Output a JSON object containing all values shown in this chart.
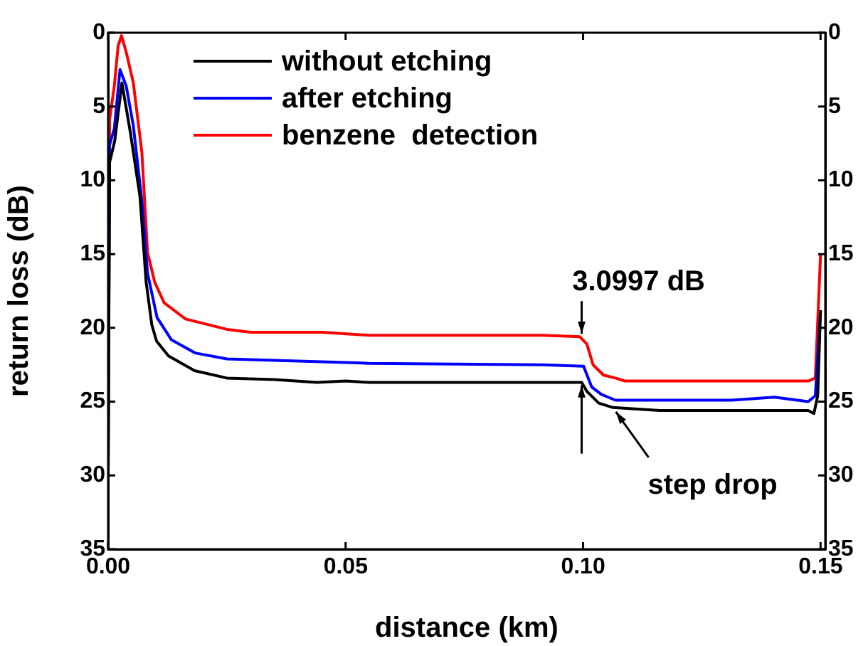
{
  "chart_data": {
    "type": "line",
    "xlabel": "distance (km)",
    "ylabel": "return loss (dB)",
    "xlim": [
      0,
      0.151
    ],
    "xticks": [
      {
        "value": 0,
        "label": "0.00"
      },
      {
        "value": 0.05,
        "label": "0.05"
      },
      {
        "value": 0.1,
        "label": "0.10"
      },
      {
        "value": 0.15,
        "label": "0.15"
      }
    ],
    "ylim": [
      35,
      0
    ],
    "yticks": [
      0,
      5,
      10,
      15,
      20,
      25,
      30,
      35
    ],
    "y2lim": [
      35,
      0
    ],
    "y2ticks": [
      0,
      5,
      10,
      15,
      20,
      25,
      30,
      35
    ],
    "legend": "top left",
    "line_style": "solid",
    "marker": "none",
    "annotations": [
      {
        "text": "3.0997 dB",
        "x": 0.0997,
        "y": 20.6
      },
      {
        "text": "step drop",
        "x": 0.1063,
        "y": 25.4
      }
    ],
    "series": [
      {
        "name": "without etching",
        "color": "#000000",
        "x": [
          0,
          0.0003,
          0.0014,
          0.0029,
          0.0047,
          0.0067,
          0.008,
          0.0092,
          0.0102,
          0.0127,
          0.0182,
          0.025,
          0.035,
          0.044,
          0.05,
          0.055,
          0.0913,
          0.0997,
          0.1008,
          0.1033,
          0.1063,
          0.1162,
          0.1312,
          0.1474,
          0.1486,
          0.1494,
          0.15
        ],
        "values": [
          30,
          8.8,
          7.3,
          3.4,
          6.8,
          11.1,
          16.9,
          19.8,
          20.9,
          21.9,
          22.9,
          23.4,
          23.5,
          23.7,
          23.6,
          23.7,
          23.7,
          23.7,
          24.3,
          25.1,
          25.4,
          25.6,
          25.6,
          25.6,
          25.8,
          24.6,
          18.8
        ]
      },
      {
        "name": "after etching",
        "color": "#0000ff",
        "x": [
          0,
          0.0003,
          0.0013,
          0.0025,
          0.0038,
          0.0053,
          0.0071,
          0.0083,
          0.0103,
          0.0133,
          0.0183,
          0.025,
          0.035,
          0.055,
          0.0913,
          0.1001,
          0.1018,
          0.1038,
          0.1068,
          0.1162,
          0.1312,
          0.1403,
          0.1474,
          0.1489,
          0.1499
        ],
        "values": [
          30,
          7.6,
          6.5,
          2.5,
          3.6,
          6.3,
          11.4,
          16.3,
          19.3,
          20.8,
          21.7,
          22.1,
          22.2,
          22.4,
          22.5,
          22.6,
          24,
          24.5,
          24.9,
          24.9,
          24.9,
          24.7,
          25,
          24.6,
          19.2
        ]
      },
      {
        "name": "benzene  detection",
        "color": "#ff0000",
        "x": [
          0,
          0.0003,
          0.0013,
          0.0021,
          0.0028,
          0.0038,
          0.0053,
          0.0071,
          0.0083,
          0.0098,
          0.0118,
          0.0163,
          0.025,
          0.03,
          0.045,
          0.055,
          0.0913,
          0.0993,
          0.1008,
          0.1021,
          0.1043,
          0.1068,
          0.1088,
          0.1113,
          0.1312,
          0.1474,
          0.1489,
          0.15
        ],
        "values": [
          30,
          5.9,
          3.6,
          0.9,
          0.2,
          1.3,
          3.4,
          8.1,
          14.9,
          16.9,
          18.3,
          19.4,
          20.1,
          20.3,
          20.3,
          20.5,
          20.5,
          20.6,
          21.1,
          22.5,
          23.2,
          23.4,
          23.6,
          23.6,
          23.6,
          23.6,
          23.4,
          15
        ]
      }
    ]
  }
}
